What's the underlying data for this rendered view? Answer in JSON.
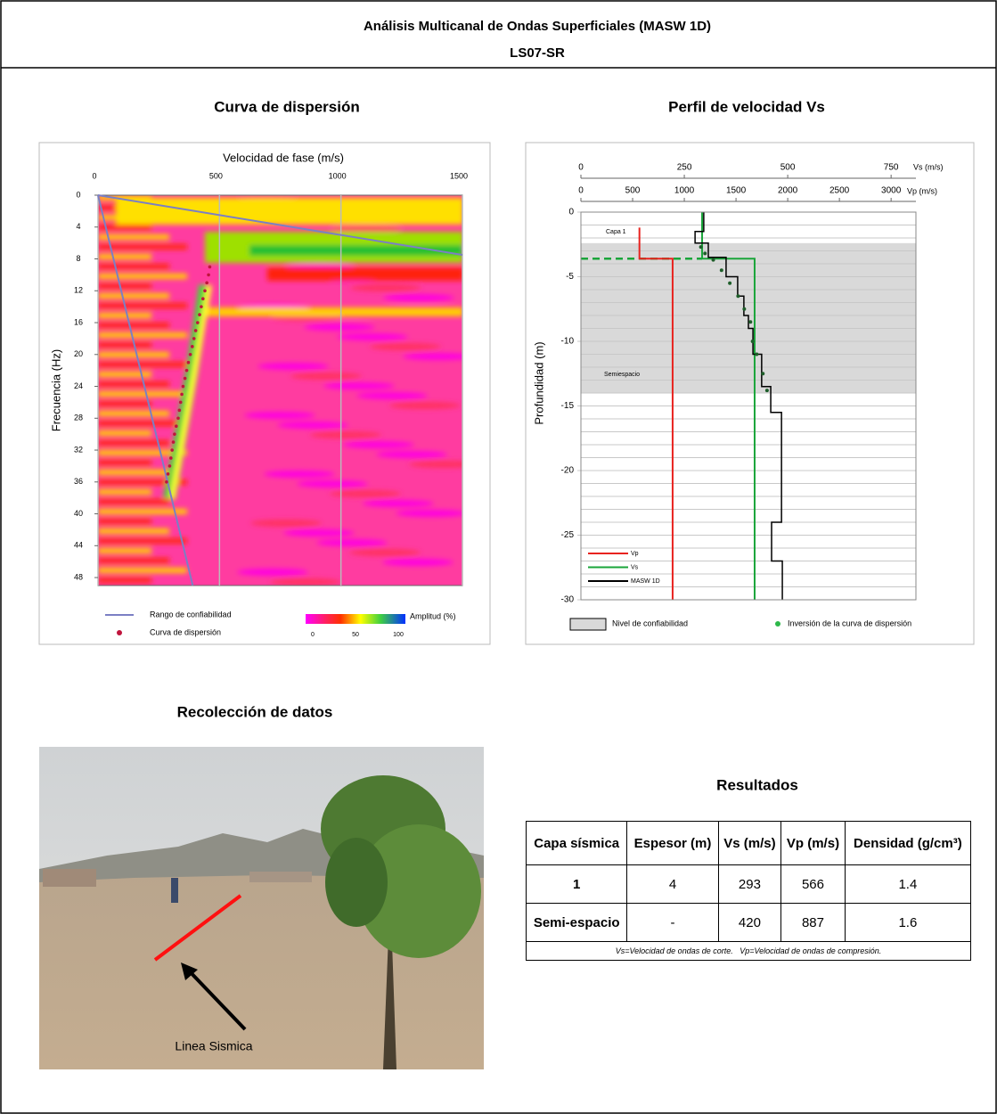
{
  "header": {
    "title": "Análisis Multicanal de Ondas Superficiales (MASW 1D)",
    "subtitle": "LS07-SR"
  },
  "dispersion_chart": {
    "type": "heatmap",
    "title": "Curva de dispersión",
    "x_label": "Velocidad de fase (m/s)",
    "y_label": "Frecuencia (Hz)",
    "xlim": [
      0,
      1500
    ],
    "xticks": [
      0,
      500,
      1000,
      1500
    ],
    "ylim": [
      0,
      49
    ],
    "yticks": [
      0,
      4,
      8,
      12,
      16,
      20,
      24,
      28,
      32,
      36,
      40,
      44,
      48
    ],
    "series": [
      {
        "name": "Rango de confiabilidad",
        "type": "line",
        "color": "#7b7fc4",
        "segments": [
          {
            "x": [
              0,
              1500
            ],
            "y": [
              0,
              7.5
            ]
          },
          {
            "x": [
              0,
              390
            ],
            "y": [
              0,
              49
            ]
          }
        ]
      },
      {
        "name": "Curva de dispersión",
        "type": "scatter",
        "color": "#c0143c",
        "x": [
          460,
          455,
          448,
          440,
          432,
          425,
          418,
          410,
          402,
          395,
          388,
          380,
          372,
          365,
          358,
          350,
          345,
          340,
          335,
          330,
          322,
          315,
          310,
          305,
          300,
          295,
          288,
          282
        ],
        "y": [
          9,
          10,
          11,
          12,
          13,
          14,
          15,
          16,
          17,
          18,
          19,
          20,
          21,
          22,
          23,
          24,
          25,
          26,
          27,
          28,
          29,
          30,
          31,
          32,
          33,
          34,
          35,
          36
        ]
      }
    ],
    "colorbar": {
      "label": "Amplitud (%)",
      "ticks": [
        0,
        50,
        100
      ]
    }
  },
  "velocity_chart": {
    "type": "line",
    "title": "Perfil de velocidad Vs",
    "y_label": "Profundidad (m)",
    "x_label": "Vs (m/s)",
    "xlim": [
      0,
      810
    ],
    "xticks": [
      0,
      250,
      500,
      750
    ],
    "x2_label": "Vp (m/s)",
    "x2lim": [
      0,
      3240
    ],
    "x2ticks": [
      0,
      500,
      1000,
      1500,
      2000,
      2500,
      3000
    ],
    "ylim": [
      0,
      -30
    ],
    "yticks": [
      0,
      -5,
      -10,
      -15,
      -20,
      -25,
      -30
    ],
    "yminor": [
      -1,
      -2,
      -3,
      -4,
      -6,
      -7,
      -8,
      -9,
      -11,
      -12,
      -13,
      -14,
      -16,
      -17,
      -18,
      -19,
      -21,
      -22,
      -23,
      -24,
      -26,
      -27,
      -28,
      -29
    ],
    "band": {
      "name": "Nivel de confiabilidad",
      "color": "#d9d9d9",
      "y": [
        -2.4,
        -14
      ]
    },
    "layer_labels": [
      "Capa 1",
      "Semiespacio"
    ],
    "layer_boundary": -3.6,
    "series": [
      {
        "name": "Vp",
        "type": "line",
        "axis": "x2",
        "color": "#e8231f",
        "x": [
          566,
          566,
          887,
          887
        ],
        "y": [
          -1.2,
          -3.6,
          -3.6,
          -30
        ]
      },
      {
        "name": "Vs",
        "type": "line",
        "axis": "x",
        "color": "#1aa53a",
        "x": [
          293,
          293,
          420,
          420
        ],
        "y": [
          0,
          -3.6,
          -3.6,
          -30
        ]
      },
      {
        "name": "MASW 1D",
        "type": "line",
        "axis": "x",
        "color": "#000000",
        "x": [
          297,
          297,
          276,
          276,
          308,
          308,
          351,
          351,
          379,
          379,
          394,
          394,
          405,
          405,
          416,
          416,
          437,
          437,
          459,
          459,
          485,
          485,
          461,
          461,
          487,
          487
        ],
        "y": [
          0,
          -1.5,
          -1.5,
          -2.4,
          -2.4,
          -3.5,
          -3.5,
          -5,
          -5,
          -6.5,
          -6.5,
          -8,
          -8,
          -9,
          -9,
          -11,
          -11,
          -13.5,
          -13.5,
          -15.5,
          -15.5,
          -24,
          -24,
          -27,
          -27,
          -30
        ]
      },
      {
        "name": "Inversión de la curva de dispersión",
        "type": "scatter",
        "axis": "x",
        "color": "#1e5e2a",
        "x": [
          290,
          300,
          320,
          340,
          360,
          380,
          395,
          410,
          415,
          425,
          440,
          450
        ],
        "y": [
          -2.7,
          -3.2,
          -3.7,
          -4.5,
          -5.5,
          -6.5,
          -7.5,
          -8.5,
          -10,
          -11,
          -12.5,
          -13.8
        ]
      }
    ]
  },
  "photo": {
    "title": "Recolección de datos",
    "label": "Linea  Sismica"
  },
  "results": {
    "title": "Resultados",
    "headers": [
      "Capa sísmica",
      "Espesor (m)",
      "Vs (m/s)",
      "Vp (m/s)",
      "Densidad (g/cm³)"
    ],
    "rows": [
      [
        1,
        4,
        293,
        566,
        1.4
      ],
      [
        "Semi-espacio",
        "-",
        420,
        887,
        1.6
      ]
    ],
    "note": "Vs=Velocidad de ondas de corte.   Vp=Velocidad de ondas de compresión."
  }
}
